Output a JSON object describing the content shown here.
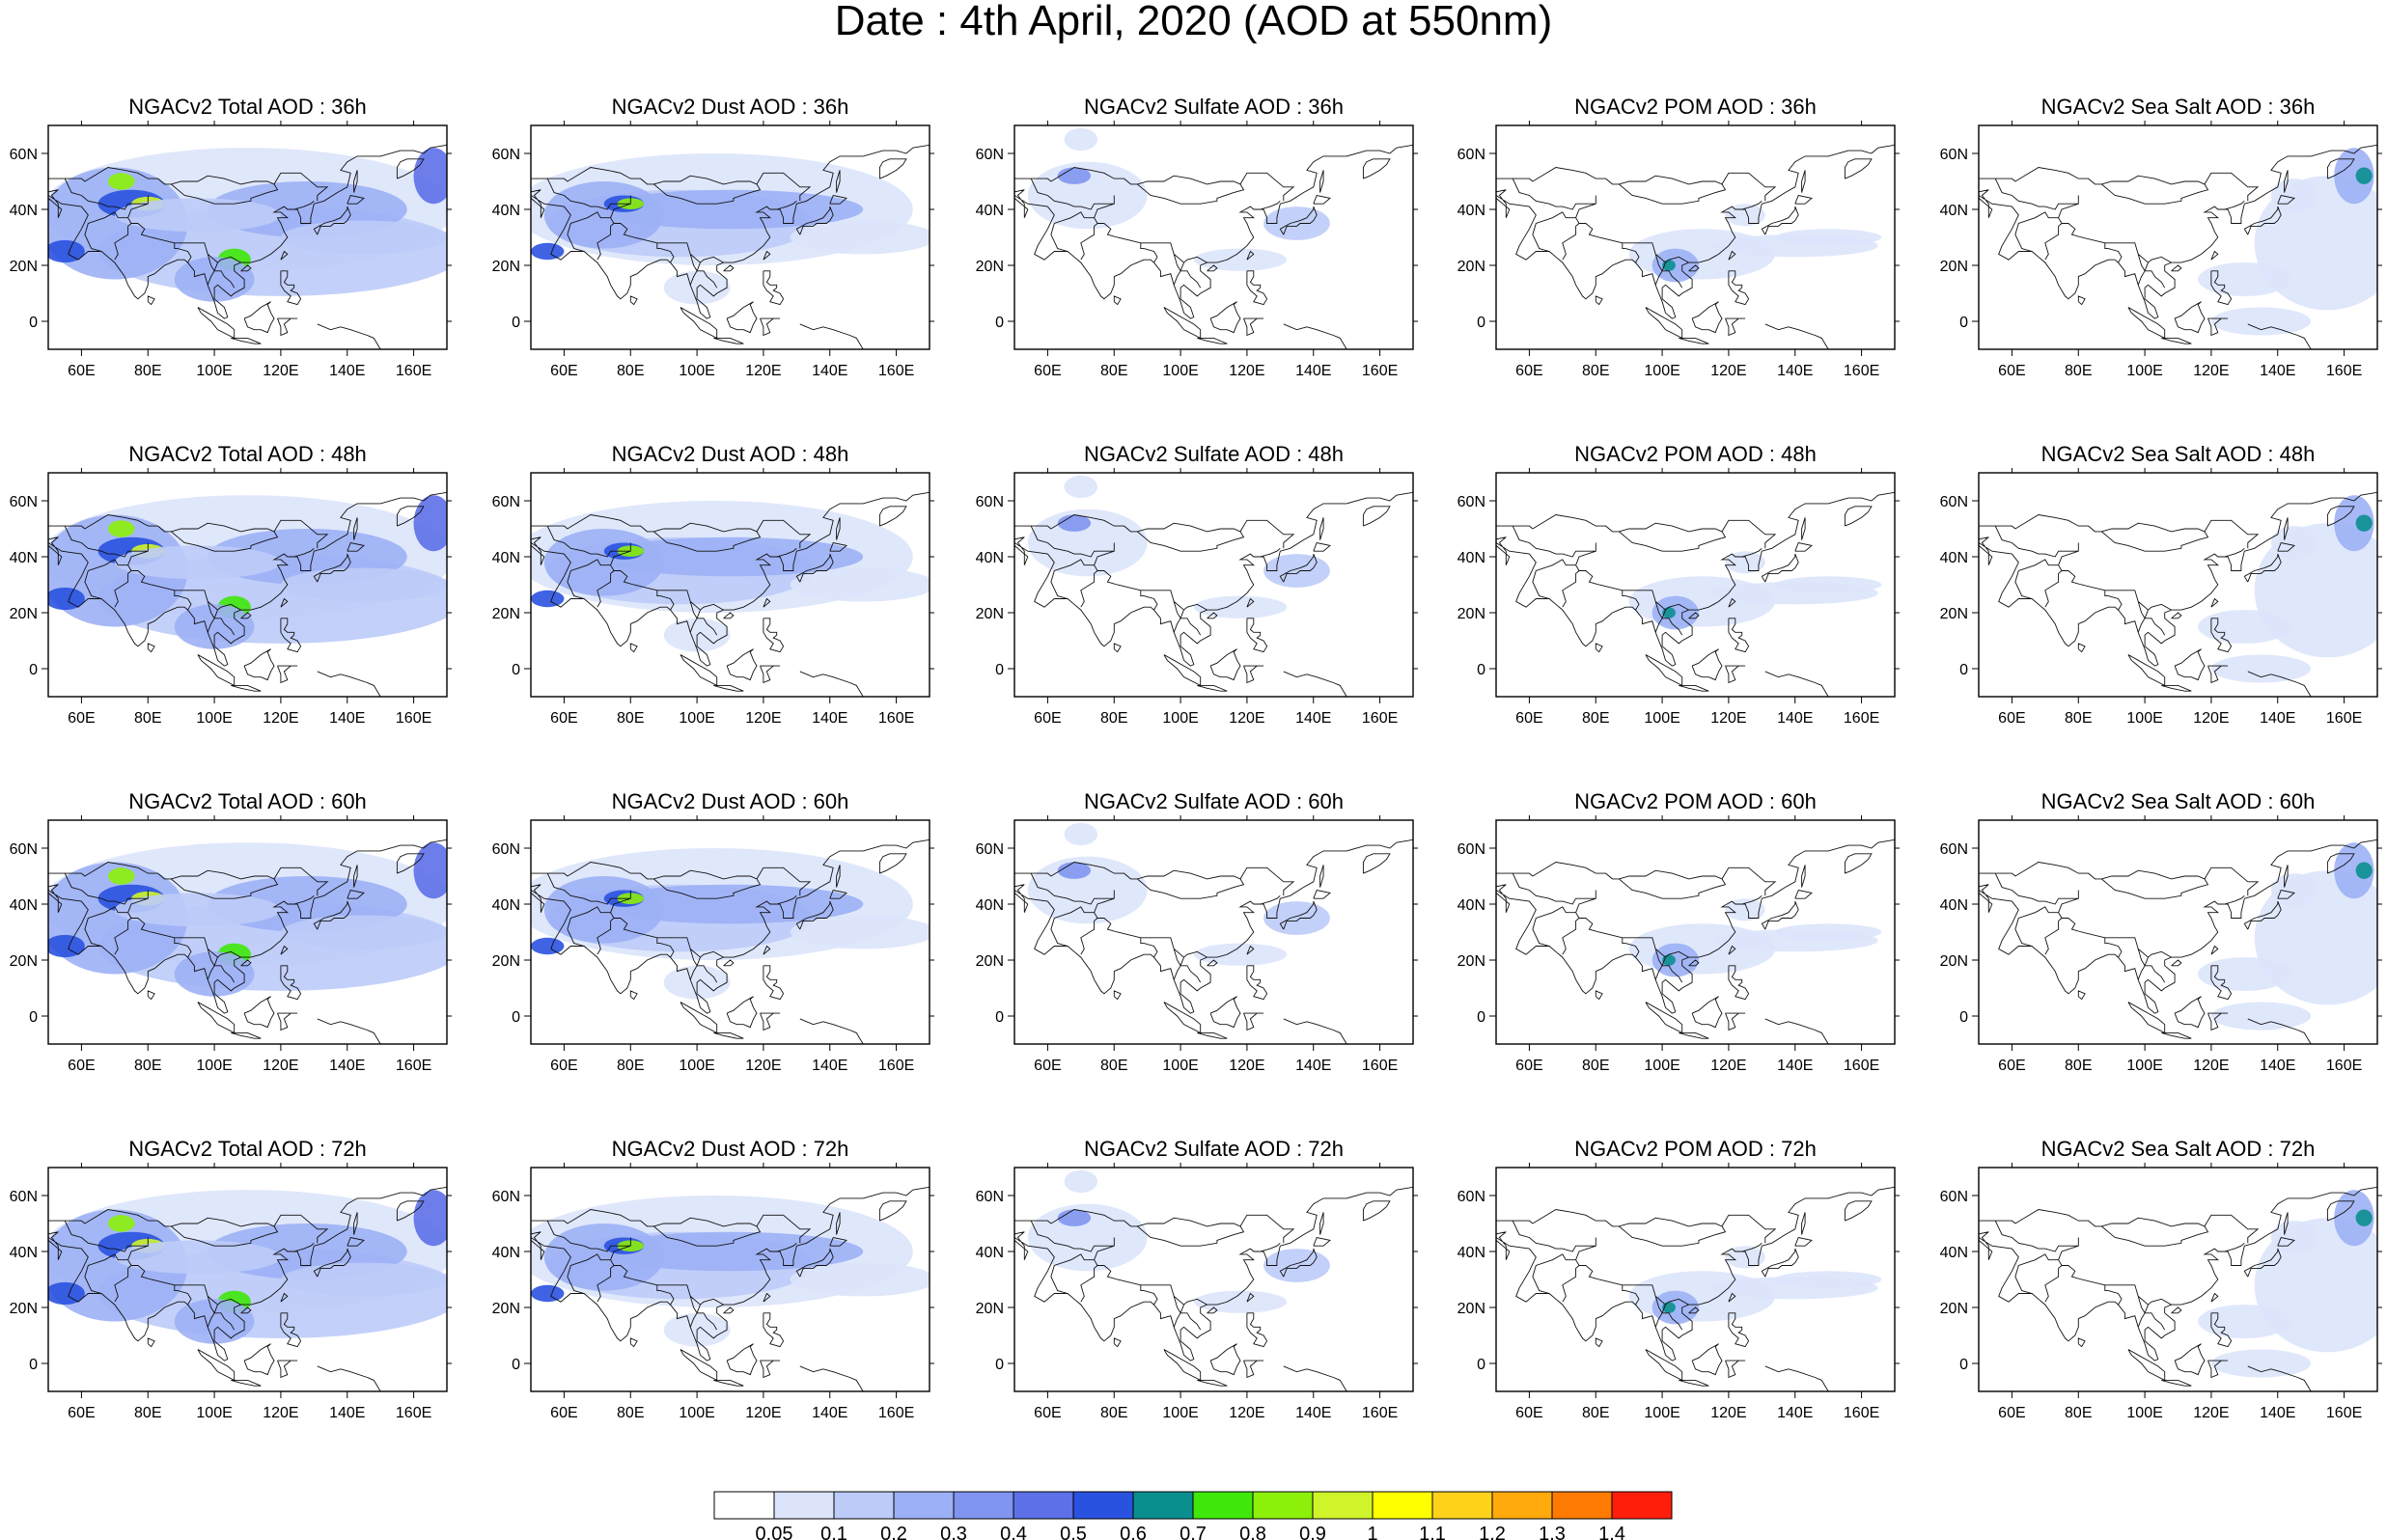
{
  "title": "Date : 4th April, 2020 (AOD at 550nm)",
  "lon_ticks": [
    "60E",
    "80E",
    "100E",
    "120E",
    "140E",
    "160E"
  ],
  "lat_ticks": [
    "60N",
    "40N",
    "20N",
    "0"
  ],
  "rows": [
    {
      "lead": "36h",
      "panels": [
        {
          "species": "total",
          "title": "NGACv2 Total AOD : 36h"
        },
        {
          "species": "dust",
          "title": "NGACv2 Dust AOD : 36h"
        },
        {
          "species": "sulfate",
          "title": "NGACv2 Sulfate AOD : 36h"
        },
        {
          "species": "pom",
          "title": "NGACv2 POM AOD : 36h"
        },
        {
          "species": "seasalt",
          "title": "NGACv2 Sea Salt AOD : 36h"
        }
      ]
    },
    {
      "lead": "48h",
      "panels": [
        {
          "species": "total",
          "title": "NGACv2 Total AOD : 48h"
        },
        {
          "species": "dust",
          "title": "NGACv2 Dust AOD : 48h"
        },
        {
          "species": "sulfate",
          "title": "NGACv2 Sulfate AOD : 48h"
        },
        {
          "species": "pom",
          "title": "NGACv2 POM AOD : 48h"
        },
        {
          "species": "seasalt",
          "title": "NGACv2 Sea Salt AOD : 48h"
        }
      ]
    },
    {
      "lead": "60h",
      "panels": [
        {
          "species": "total",
          "title": "NGACv2 Total AOD : 60h"
        },
        {
          "species": "dust",
          "title": "NGACv2 Dust AOD : 60h"
        },
        {
          "species": "sulfate",
          "title": "NGACv2 Sulfate AOD : 60h"
        },
        {
          "species": "pom",
          "title": "NGACv2 POM AOD : 60h"
        },
        {
          "species": "seasalt",
          "title": "NGACv2 Sea Salt AOD : 60h"
        }
      ]
    },
    {
      "lead": "72h",
      "panels": [
        {
          "species": "total",
          "title": "NGACv2 Total AOD : 72h"
        },
        {
          "species": "dust",
          "title": "NGACv2 Dust AOD : 72h"
        },
        {
          "species": "sulfate",
          "title": "NGACv2 Sulfate AOD : 72h"
        },
        {
          "species": "pom",
          "title": "NGACv2 POM AOD : 72h"
        },
        {
          "species": "seasalt",
          "title": "NGACv2 Sea Salt  AOD : 72h"
        }
      ]
    }
  ],
  "colorbar": {
    "labels": [
      "0.05",
      "0.1",
      "0.2",
      "0.3",
      "0.4",
      "0.5",
      "0.6",
      "0.7",
      "0.8",
      "0.9",
      "1",
      "1.1",
      "1.2",
      "1.3",
      "1.4"
    ],
    "colors": [
      "#ffffff",
      "#dbe4fb",
      "#bccbf8",
      "#9cb0f5",
      "#7f95f0",
      "#5d70e8",
      "#2a52e0",
      "#0a8f8f",
      "#3fe80a",
      "#8cf00a",
      "#cff52a",
      "#ffff00",
      "#ffd21a",
      "#ffaa0a",
      "#ff7a00",
      "#ff1e0a"
    ]
  }
}
